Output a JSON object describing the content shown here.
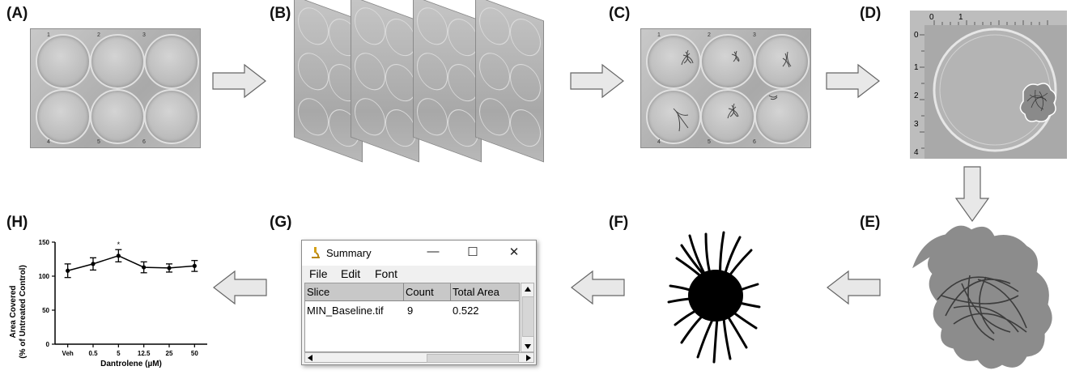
{
  "panels": {
    "a": "(A)",
    "b": "(B)",
    "c": "(C)",
    "d": "(D)",
    "e": "(E)",
    "f": "(F)",
    "g": "(G)",
    "h": "(H)"
  },
  "plate": {
    "well_numbers": [
      "1",
      "2",
      "3",
      "4",
      "5",
      "6"
    ]
  },
  "ruler": {
    "top_ticks": [
      "0",
      "1"
    ],
    "left_ticks": [
      "0",
      "1",
      "2",
      "3",
      "4"
    ]
  },
  "window": {
    "title": "Summary",
    "icon": "microscope-icon",
    "controls": [
      "—",
      "☐",
      "✕"
    ],
    "menu": [
      "File",
      "Edit",
      "Font"
    ],
    "columns": [
      "Slice",
      "Count",
      "Total Area"
    ],
    "rows": [
      [
        "MIN_Baseline.tif",
        "9",
        "0.522"
      ]
    ]
  },
  "arrows": {
    "color": "#e8e8e8",
    "stroke": "#666666"
  },
  "chart_data": {
    "type": "line",
    "categories": [
      "Veh",
      "0.5",
      "5",
      "12.5",
      "25",
      "50"
    ],
    "values": [
      108,
      118,
      130,
      113,
      112,
      115
    ],
    "errors": [
      10,
      9,
      9,
      8,
      6,
      8
    ],
    "significance": [
      {
        "category": "5",
        "mark": "*"
      }
    ],
    "xlabel": "Dantrolene (µM)",
    "ylabel_line1": "Area Covered",
    "ylabel_line2": "(% of Untreated Control)",
    "ylim": [
      0,
      150
    ],
    "yticks": [
      "0",
      "50",
      "100",
      "150"
    ],
    "grid": false,
    "color": "#000000"
  }
}
